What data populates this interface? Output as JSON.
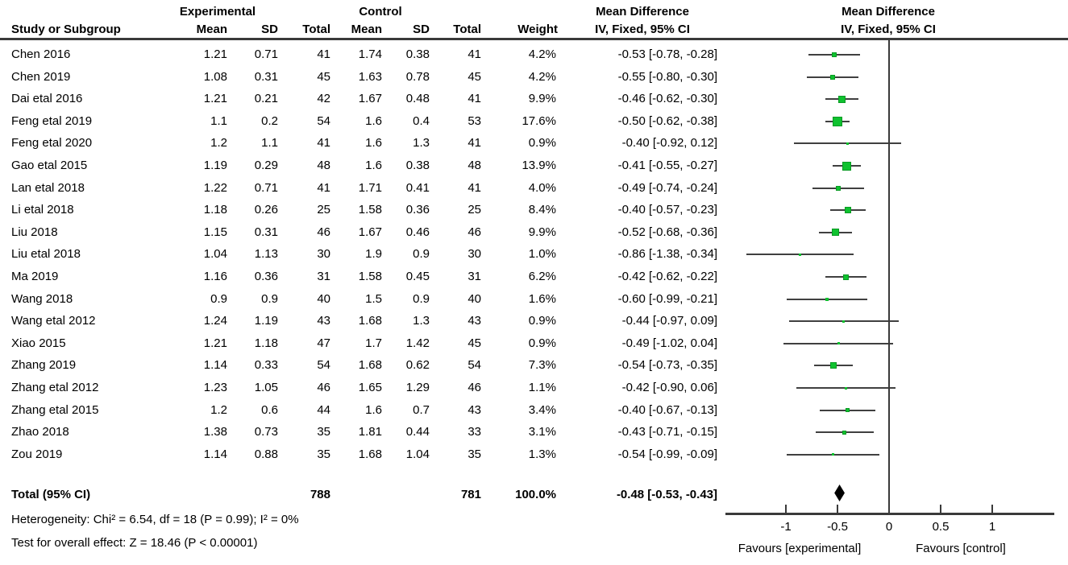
{
  "header": {
    "group_experimental": "Experimental",
    "group_control": "Control",
    "study_col": "Study or Subgroup",
    "mean_col": "Mean",
    "sd_col": "SD",
    "total_col": "Total",
    "weight_col": "Weight",
    "effect_title": "Mean Difference",
    "effect_subtitle": "IV, Fixed, 95% CI"
  },
  "chart_data": {
    "type": "forest",
    "effect_measure": "Mean Difference, IV, Fixed, 95% CI",
    "studies": [
      {
        "name": "Chen 2016",
        "exp_mean": "1.21",
        "exp_sd": "0.71",
        "exp_total": "41",
        "ctrl_mean": "1.74",
        "ctrl_sd": "0.38",
        "ctrl_total": "41",
        "weight": "4.2%",
        "weight_pct": 4.2,
        "md": -0.53,
        "ci_low": -0.78,
        "ci_high": -0.28,
        "ci_label": "-0.53 [-0.78, -0.28]"
      },
      {
        "name": "Chen 2019",
        "exp_mean": "1.08",
        "exp_sd": "0.31",
        "exp_total": "45",
        "ctrl_mean": "1.63",
        "ctrl_sd": "0.78",
        "ctrl_total": "45",
        "weight": "4.2%",
        "weight_pct": 4.2,
        "md": -0.55,
        "ci_low": -0.8,
        "ci_high": -0.3,
        "ci_label": "-0.55 [-0.80, -0.30]"
      },
      {
        "name": "Dai etal 2016",
        "exp_mean": "1.21",
        "exp_sd": "0.21",
        "exp_total": "42",
        "ctrl_mean": "1.67",
        "ctrl_sd": "0.48",
        "ctrl_total": "41",
        "weight": "9.9%",
        "weight_pct": 9.9,
        "md": -0.46,
        "ci_low": -0.62,
        "ci_high": -0.3,
        "ci_label": "-0.46 [-0.62, -0.30]"
      },
      {
        "name": "Feng etal 2019",
        "exp_mean": "1.1",
        "exp_sd": "0.2",
        "exp_total": "54",
        "ctrl_mean": "1.6",
        "ctrl_sd": "0.4",
        "ctrl_total": "53",
        "weight": "17.6%",
        "weight_pct": 17.6,
        "md": -0.5,
        "ci_low": -0.62,
        "ci_high": -0.38,
        "ci_label": "-0.50 [-0.62, -0.38]"
      },
      {
        "name": "Feng etal 2020",
        "exp_mean": "1.2",
        "exp_sd": "1.1",
        "exp_total": "41",
        "ctrl_mean": "1.6",
        "ctrl_sd": "1.3",
        "ctrl_total": "41",
        "weight": "0.9%",
        "weight_pct": 0.9,
        "md": -0.4,
        "ci_low": -0.92,
        "ci_high": 0.12,
        "ci_label": "-0.40 [-0.92, 0.12]"
      },
      {
        "name": "Gao etal 2015",
        "exp_mean": "1.19",
        "exp_sd": "0.29",
        "exp_total": "48",
        "ctrl_mean": "1.6",
        "ctrl_sd": "0.38",
        "ctrl_total": "48",
        "weight": "13.9%",
        "weight_pct": 13.9,
        "md": -0.41,
        "ci_low": -0.55,
        "ci_high": -0.27,
        "ci_label": "-0.41 [-0.55, -0.27]"
      },
      {
        "name": "Lan etal 2018",
        "exp_mean": "1.22",
        "exp_sd": "0.71",
        "exp_total": "41",
        "ctrl_mean": "1.71",
        "ctrl_sd": "0.41",
        "ctrl_total": "41",
        "weight": "4.0%",
        "weight_pct": 4.0,
        "md": -0.49,
        "ci_low": -0.74,
        "ci_high": -0.24,
        "ci_label": "-0.49 [-0.74, -0.24]"
      },
      {
        "name": "Li etal 2018",
        "exp_mean": "1.18",
        "exp_sd": "0.26",
        "exp_total": "25",
        "ctrl_mean": "1.58",
        "ctrl_sd": "0.36",
        "ctrl_total": "25",
        "weight": "8.4%",
        "weight_pct": 8.4,
        "md": -0.4,
        "ci_low": -0.57,
        "ci_high": -0.23,
        "ci_label": "-0.40 [-0.57, -0.23]"
      },
      {
        "name": "Liu 2018",
        "exp_mean": "1.15",
        "exp_sd": "0.31",
        "exp_total": "46",
        "ctrl_mean": "1.67",
        "ctrl_sd": "0.46",
        "ctrl_total": "46",
        "weight": "9.9%",
        "weight_pct": 9.9,
        "md": -0.52,
        "ci_low": -0.68,
        "ci_high": -0.36,
        "ci_label": "-0.52 [-0.68, -0.36]"
      },
      {
        "name": "Liu etal 2018",
        "exp_mean": "1.04",
        "exp_sd": "1.13",
        "exp_total": "30",
        "ctrl_mean": "1.9",
        "ctrl_sd": "0.9",
        "ctrl_total": "30",
        "weight": "1.0%",
        "weight_pct": 1.0,
        "md": -0.86,
        "ci_low": -1.38,
        "ci_high": -0.34,
        "ci_label": "-0.86 [-1.38, -0.34]"
      },
      {
        "name": "Ma 2019",
        "exp_mean": "1.16",
        "exp_sd": "0.36",
        "exp_total": "31",
        "ctrl_mean": "1.58",
        "ctrl_sd": "0.45",
        "ctrl_total": "31",
        "weight": "6.2%",
        "weight_pct": 6.2,
        "md": -0.42,
        "ci_low": -0.62,
        "ci_high": -0.22,
        "ci_label": "-0.42 [-0.62, -0.22]"
      },
      {
        "name": "Wang 2018",
        "exp_mean": "0.9",
        "exp_sd": "0.9",
        "exp_total": "40",
        "ctrl_mean": "1.5",
        "ctrl_sd": "0.9",
        "ctrl_total": "40",
        "weight": "1.6%",
        "weight_pct": 1.6,
        "md": -0.6,
        "ci_low": -0.99,
        "ci_high": -0.21,
        "ci_label": "-0.60 [-0.99, -0.21]"
      },
      {
        "name": "Wang etal 2012",
        "exp_mean": "1.24",
        "exp_sd": "1.19",
        "exp_total": "43",
        "ctrl_mean": "1.68",
        "ctrl_sd": "1.3",
        "ctrl_total": "43",
        "weight": "0.9%",
        "weight_pct": 0.9,
        "md": -0.44,
        "ci_low": -0.97,
        "ci_high": 0.09,
        "ci_label": "-0.44 [-0.97, 0.09]"
      },
      {
        "name": "Xiao 2015",
        "exp_mean": "1.21",
        "exp_sd": "1.18",
        "exp_total": "47",
        "ctrl_mean": "1.7",
        "ctrl_sd": "1.42",
        "ctrl_total": "45",
        "weight": "0.9%",
        "weight_pct": 0.9,
        "md": -0.49,
        "ci_low": -1.02,
        "ci_high": 0.04,
        "ci_label": "-0.49 [-1.02, 0.04]"
      },
      {
        "name": "Zhang 2019",
        "exp_mean": "1.14",
        "exp_sd": "0.33",
        "exp_total": "54",
        "ctrl_mean": "1.68",
        "ctrl_sd": "0.62",
        "ctrl_total": "54",
        "weight": "7.3%",
        "weight_pct": 7.3,
        "md": -0.54,
        "ci_low": -0.73,
        "ci_high": -0.35,
        "ci_label": "-0.54 [-0.73, -0.35]"
      },
      {
        "name": "Zhang etal 2012",
        "exp_mean": "1.23",
        "exp_sd": "1.05",
        "exp_total": "46",
        "ctrl_mean": "1.65",
        "ctrl_sd": "1.29",
        "ctrl_total": "46",
        "weight": "1.1%",
        "weight_pct": 1.1,
        "md": -0.42,
        "ci_low": -0.9,
        "ci_high": 0.06,
        "ci_label": "-0.42 [-0.90, 0.06]"
      },
      {
        "name": "Zhang etal 2015",
        "exp_mean": "1.2",
        "exp_sd": "0.6",
        "exp_total": "44",
        "ctrl_mean": "1.6",
        "ctrl_sd": "0.7",
        "ctrl_total": "43",
        "weight": "3.4%",
        "weight_pct": 3.4,
        "md": -0.4,
        "ci_low": -0.67,
        "ci_high": -0.13,
        "ci_label": "-0.40 [-0.67, -0.13]"
      },
      {
        "name": "Zhao 2018",
        "exp_mean": "1.38",
        "exp_sd": "0.73",
        "exp_total": "35",
        "ctrl_mean": "1.81",
        "ctrl_sd": "0.44",
        "ctrl_total": "33",
        "weight": "3.1%",
        "weight_pct": 3.1,
        "md": -0.43,
        "ci_low": -0.71,
        "ci_high": -0.15,
        "ci_label": "-0.43 [-0.71, -0.15]"
      },
      {
        "name": "Zou 2019",
        "exp_mean": "1.14",
        "exp_sd": "0.88",
        "exp_total": "35",
        "ctrl_mean": "1.68",
        "ctrl_sd": "1.04",
        "ctrl_total": "35",
        "weight": "1.3%",
        "weight_pct": 1.3,
        "md": -0.54,
        "ci_low": -0.99,
        "ci_high": -0.09,
        "ci_label": "-0.54 [-0.99, -0.09]"
      }
    ],
    "total": {
      "name": "Total (95% CI)",
      "exp_total": "788",
      "ctrl_total": "781",
      "weight": "100.0%",
      "md": -0.48,
      "ci_low": -0.53,
      "ci_high": -0.43,
      "ci_label": "-0.48 [-0.53, -0.43]"
    },
    "footnotes": {
      "heterogeneity": "Heterogeneity: Chi² = 6.54, df = 18 (P = 0.99); I² = 0%",
      "overall_effect": "Test for overall effect: Z = 18.46 (P < 0.00001)"
    },
    "axis": {
      "ticks": [
        -1,
        -0.5,
        0,
        0.5,
        1
      ],
      "tick_labels": [
        "-1",
        "-0.5",
        "0",
        "0.5",
        "1"
      ],
      "xlim": [
        -1.59,
        1.6
      ],
      "favours_left": "Favours [experimental]",
      "favours_right": "Favours [control]"
    }
  },
  "colors": {
    "marker_fill": "#0fc22f",
    "marker_border": "#0a9a24",
    "line": "#3a3a3a",
    "diamond": "#000000",
    "text": "#000000"
  }
}
